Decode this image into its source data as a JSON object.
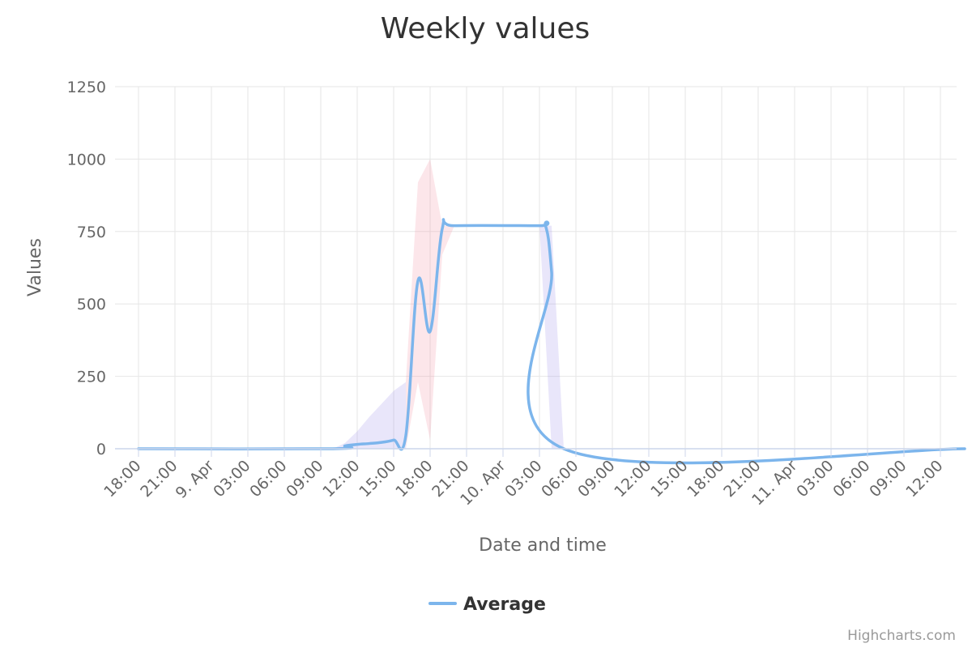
{
  "chart_data": {
    "type": "line",
    "title": "Weekly values",
    "xlabel": "Date and time",
    "ylabel": "Values",
    "ylim": [
      0,
      1250
    ],
    "y_ticks": [
      0,
      250,
      500,
      750,
      1000,
      1250
    ],
    "x_range": [
      "2024-04-08 18:00",
      "2024-04-11 14:00"
    ],
    "x_ticks": [
      {
        "t": "2024-04-08 18:00",
        "label": "18:00"
      },
      {
        "t": "2024-04-08 21:00",
        "label": "21:00"
      },
      {
        "t": "2024-04-09 00:00",
        "label": "9. Apr"
      },
      {
        "t": "2024-04-09 03:00",
        "label": "03:00"
      },
      {
        "t": "2024-04-09 06:00",
        "label": "06:00"
      },
      {
        "t": "2024-04-09 09:00",
        "label": "09:00"
      },
      {
        "t": "2024-04-09 12:00",
        "label": "12:00"
      },
      {
        "t": "2024-04-09 15:00",
        "label": "15:00"
      },
      {
        "t": "2024-04-09 18:00",
        "label": "18:00"
      },
      {
        "t": "2024-04-09 21:00",
        "label": "21:00"
      },
      {
        "t": "2024-04-10 00:00",
        "label": "10. Apr"
      },
      {
        "t": "2024-04-10 03:00",
        "label": "03:00"
      },
      {
        "t": "2024-04-10 06:00",
        "label": "06:00"
      },
      {
        "t": "2024-04-10 09:00",
        "label": "09:00"
      },
      {
        "t": "2024-04-10 12:00",
        "label": "12:00"
      },
      {
        "t": "2024-04-10 15:00",
        "label": "15:00"
      },
      {
        "t": "2024-04-10 18:00",
        "label": "18:00"
      },
      {
        "t": "2024-04-10 21:00",
        "label": "21:00"
      },
      {
        "t": "2024-04-11 00:00",
        "label": "11. Apr"
      },
      {
        "t": "2024-04-11 03:00",
        "label": "03:00"
      },
      {
        "t": "2024-04-11 06:00",
        "label": "06:00"
      },
      {
        "t": "2024-04-11 09:00",
        "label": "09:00"
      },
      {
        "t": "2024-04-11 12:00",
        "label": "12:00"
      }
    ],
    "grid": true,
    "legend_position": "bottom-center",
    "series": [
      {
        "name": "Average",
        "type": "line",
        "color": "#7cb5ec",
        "points": [
          [
            "2024-04-08 18:00",
            0
          ],
          [
            "2024-04-09 10:00",
            0
          ],
          [
            "2024-04-09 11:00",
            10
          ],
          [
            "2024-04-09 12:00",
            15
          ],
          [
            "2024-04-09 13:00",
            18
          ],
          [
            "2024-04-09 14:00",
            22
          ],
          [
            "2024-04-09 15:00",
            30
          ],
          [
            "2024-04-09 16:00",
            45
          ],
          [
            "2024-04-09 17:00",
            580
          ],
          [
            "2024-04-09 18:00",
            405
          ],
          [
            "2024-04-09 19:00",
            760
          ],
          [
            "2024-04-09 20:00",
            770
          ],
          [
            "2024-04-10 03:00",
            770
          ],
          [
            "2024-04-10 03:30",
            770
          ],
          [
            "2024-04-10 04:00",
            610
          ],
          [
            "2024-04-10 05:00",
            0
          ],
          [
            "2024-04-11 14:00",
            0
          ]
        ]
      },
      {
        "type": "arearange",
        "color": "#9b8ce8",
        "opacity": 0.22,
        "ranges": [
          [
            "2024-04-09 10:00",
            0,
            0
          ],
          [
            "2024-04-09 11:00",
            0,
            20
          ],
          [
            "2024-04-09 12:00",
            0,
            60
          ],
          [
            "2024-04-09 13:00",
            0,
            110
          ],
          [
            "2024-04-09 14:00",
            0,
            155
          ],
          [
            "2024-04-09 15:00",
            0,
            200
          ],
          [
            "2024-04-09 16:00",
            0,
            230
          ]
        ]
      },
      {
        "type": "arearange",
        "color": "#f08ca0",
        "opacity": 0.22,
        "ranges": [
          [
            "2024-04-09 16:00",
            0,
            230
          ],
          [
            "2024-04-09 17:00",
            230,
            920
          ],
          [
            "2024-04-09 18:00",
            30,
            1000
          ],
          [
            "2024-04-09 19:00",
            670,
            770
          ],
          [
            "2024-04-09 20:00",
            770,
            770
          ]
        ]
      },
      {
        "type": "arearange",
        "color": "#9b8ce8",
        "opacity": 0.22,
        "ranges": [
          [
            "2024-04-10 03:00",
            770,
            770
          ],
          [
            "2024-04-10 04:00",
            0,
            770
          ],
          [
            "2024-04-10 05:00",
            0,
            0
          ]
        ]
      }
    ]
  },
  "legend": {
    "label": "Average"
  },
  "credits": {
    "label": "Highcharts.com"
  }
}
